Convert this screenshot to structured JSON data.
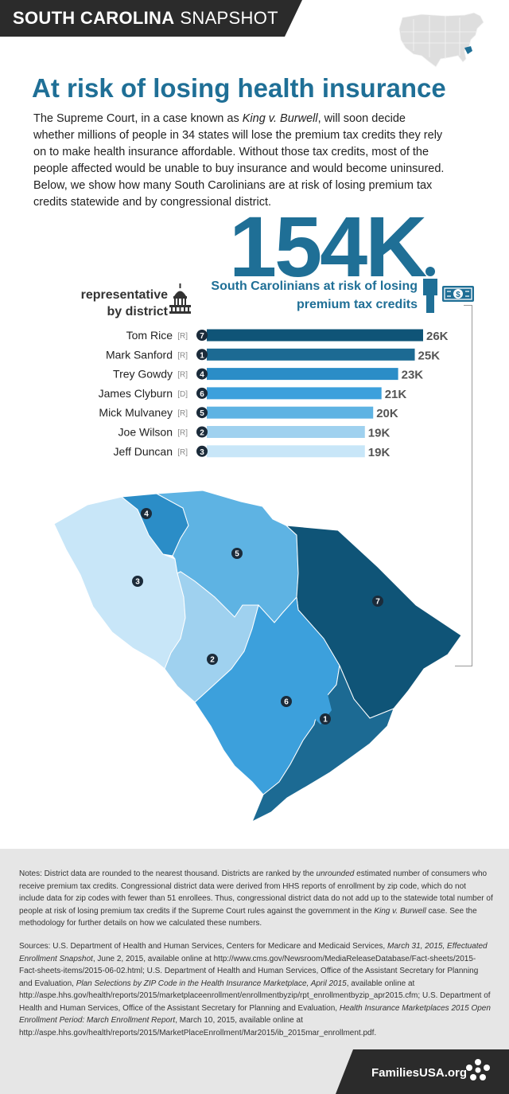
{
  "header": {
    "title_strong": "SOUTH CAROLINA",
    "title_light": "SNAPSHOT"
  },
  "title": "At risk of losing health insurance",
  "intro": {
    "part1": "The Supreme Court, in a case known as ",
    "case_name": "King v. Burwell",
    "part2": ", will soon decide whether millions of people in 34 states will lose the premium tax credits they rely on to make health insurance affordable. Without those tax credits, most of the people affected would be unable to buy insurance and would become uninsured. Below, we show how many South Carolinians are at risk of losing premium tax credits statewide and by congressional district."
  },
  "headline_number": "154K",
  "headline_caption_line1": "South Carolinians at risk of losing",
  "headline_caption_line2": "premium tax credits",
  "rep_label_line1": "representative",
  "rep_label_line2": "by district",
  "icons": {
    "capitol": "capitol-icon",
    "person": "person-icon",
    "money": "dollar-bill-icon",
    "us_map": "us-map-icon",
    "logo": "families-usa-logo"
  },
  "colors": {
    "title": "#1f6f96",
    "district_1": "#1c6a93",
    "district_2": "#9fd1ef",
    "district_3": "#c8e6f8",
    "district_4": "#2b8dc7",
    "district_5": "#5eb3e3",
    "district_6": "#3ca0dc",
    "district_7": "#0f5477",
    "notes_bg": "#e6e6e6",
    "header_bg": "#2b2b2b"
  },
  "chart_data": {
    "type": "bar",
    "orientation": "horizontal",
    "categories": [
      "Tom Rice",
      "Mark Sanford",
      "Trey Gowdy",
      "James Clyburn",
      "Mick Mulvaney",
      "Joe Wilson",
      "Jeff Duncan"
    ],
    "party": [
      "[R]",
      "[R]",
      "[R]",
      "[D]",
      "[R]",
      "[R]",
      "[R]"
    ],
    "district": [
      "7",
      "1",
      "4",
      "6",
      "5",
      "2",
      "3"
    ],
    "values": [
      26,
      25,
      23,
      21,
      20,
      19,
      19
    ],
    "value_labels": [
      "26K",
      "25K",
      "23K",
      "21K",
      "20K",
      "19K",
      "19K"
    ],
    "bar_colors": [
      "#0f5477",
      "#1c6a93",
      "#2b8dc7",
      "#3ca0dc",
      "#5eb3e3",
      "#9fd1ef",
      "#c8e6f8"
    ],
    "unit": "thousands"
  },
  "map_labels": [
    "4",
    "5",
    "3",
    "7",
    "2",
    "6",
    "1"
  ],
  "notes": {
    "t1": "Notes: District data are rounded to the nearest thousand. Districts are ranked by the ",
    "em1": "unrounded",
    "t2": " estimated number of consumers who receive premium tax credits. Congressional district data were derived from HHS reports of enrollment by zip code, which do not include data for zip codes with fewer than 51 enrollees. Thus, congressional district data do not add up to the statewide total number of people at risk of losing premium tax credits if the Supreme Court rules against the government in the ",
    "em2": "King v. Burwell",
    "t3": " case. See the methodology for further details on how we calculated these numbers."
  },
  "sources": {
    "t1": "Sources: U.S. Department of Health and Human Services, Centers for Medicare and Medicaid Services, ",
    "em1": "March 31, 2015, Effectuated Enrollment Snapshot",
    "t2": ", June 2, 2015, available online at http://www.cms.gov/Newsroom/MediaReleaseDatabase/Fact-sheets/2015-Fact-sheets-items/2015-06-02.html; U.S. Department of Health and Human Services, Office of the Assistant Secretary for Planning and Evaluation, ",
    "em2": "Plan Selections by ZIP Code in the Health Insurance Marketplace, April 2015",
    "t3": ", available online at http://aspe.hhs.gov/health/reports/2015/marketplaceenrollment/enrollmentbyzip/rpt_enrollmentbyzip_apr2015.cfm; U.S. Department of Health and Human Services, Office of the Assistant Secretary for Planning and Evaluation, ",
    "em3": "Health Insurance Marketplaces 2015 Open Enrollment Period: March Enrollment Report",
    "t4": ", March 10, 2015, available online at http://aspe.hhs.gov/health/reports/2015/MarketPlaceEnrollment/Mar2015/ib_2015mar_enrollment.pdf."
  },
  "footer": {
    "url": "FamiliesUSA.org"
  }
}
